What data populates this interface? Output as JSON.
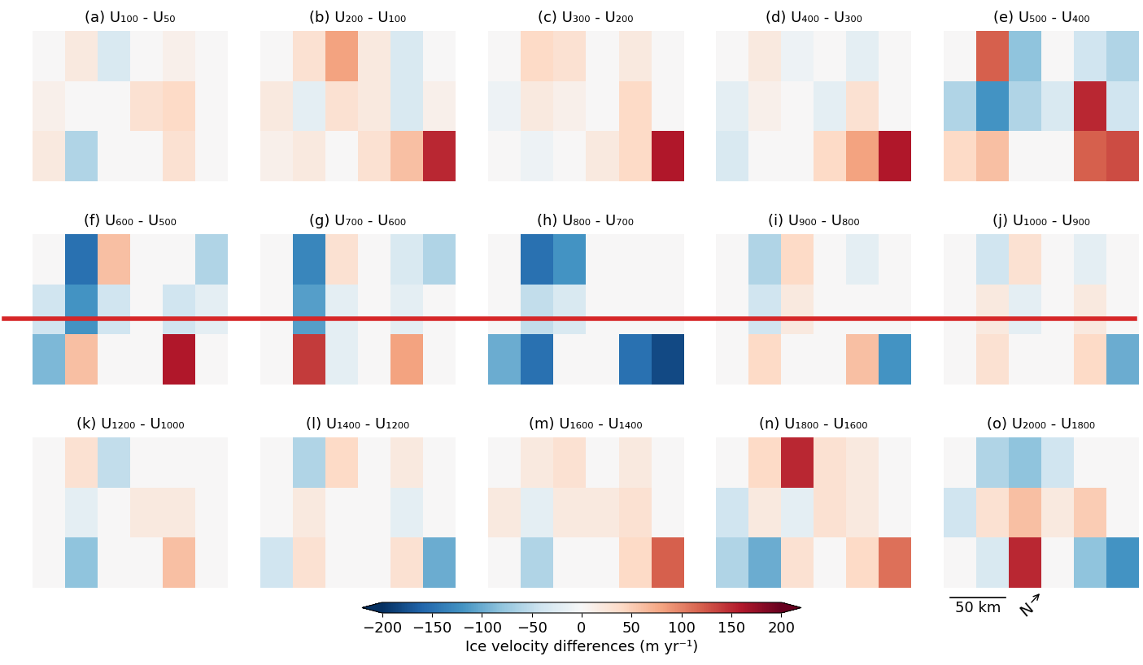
{
  "chart_data": {
    "type": "heatmap",
    "tick_labels": false,
    "panels": [
      {
        "title": "(a) U₁₀₀ - U₅₀",
        "cells": [
          [
            0,
            20,
            -30,
            0,
            10,
            0
          ],
          [
            10,
            0,
            0,
            30,
            40,
            0
          ],
          [
            20,
            -60,
            0,
            0,
            30,
            0
          ]
        ]
      },
      {
        "title": "(b) U₂₀₀ - U₁₀₀",
        "cells": [
          [
            0,
            30,
            80,
            20,
            -30,
            0
          ],
          [
            20,
            -20,
            30,
            20,
            -30,
            10
          ],
          [
            10,
            20,
            0,
            30,
            60,
            150
          ]
        ]
      },
      {
        "title": "(c) U₃₀₀ - U₂₀₀",
        "cells": [
          [
            0,
            40,
            30,
            0,
            20,
            0
          ],
          [
            -10,
            20,
            10,
            0,
            40,
            0
          ],
          [
            0,
            -10,
            0,
            20,
            40,
            160
          ]
        ]
      },
      {
        "title": "(d) U₄₀₀ - U₃₀₀",
        "cells": [
          [
            0,
            20,
            -10,
            0,
            -20,
            0
          ],
          [
            -20,
            10,
            0,
            -20,
            30,
            0
          ],
          [
            -30,
            0,
            0,
            40,
            80,
            160
          ]
        ]
      },
      {
        "title": "(e) U₅₀₀ - U₄₀₀",
        "cells": [
          [
            0,
            120,
            -80,
            0,
            -40,
            -60
          ],
          [
            -60,
            -120,
            -60,
            -30,
            150,
            -40
          ],
          [
            40,
            60,
            0,
            0,
            120,
            130
          ]
        ]
      },
      {
        "title": "(f) U₆₀₀ - U₅₀₀",
        "cells": [
          [
            0,
            -150,
            60,
            0,
            0,
            -60
          ],
          [
            -40,
            -120,
            -40,
            0,
            -40,
            -20
          ],
          [
            -90,
            60,
            0,
            0,
            160,
            0
          ]
        ]
      },
      {
        "title": "(g) U₇₀₀ - U₆₀₀",
        "cells": [
          [
            0,
            -130,
            30,
            0,
            -30,
            -60
          ],
          [
            0,
            -110,
            -20,
            0,
            -20,
            0
          ],
          [
            0,
            140,
            -20,
            0,
            80,
            0
          ]
        ]
      },
      {
        "title": "(h) U₈₀₀ - U₇₀₀",
        "cells": [
          [
            0,
            -150,
            -120,
            0,
            0,
            0
          ],
          [
            0,
            -50,
            -30,
            0,
            0,
            0
          ],
          [
            -100,
            -150,
            0,
            0,
            -150,
            -180
          ]
        ]
      },
      {
        "title": "(i) U₉₀₀ - U₈₀₀",
        "cells": [
          [
            0,
            -60,
            40,
            0,
            -20,
            0
          ],
          [
            0,
            -40,
            20,
            0,
            0,
            0
          ],
          [
            0,
            40,
            0,
            0,
            60,
            -120
          ]
        ]
      },
      {
        "title": "(j) U₁₀₀₀ - U₉₀₀",
        "cells": [
          [
            0,
            -40,
            30,
            0,
            -20,
            0
          ],
          [
            0,
            20,
            -20,
            0,
            20,
            0
          ],
          [
            0,
            30,
            0,
            0,
            40,
            -100
          ]
        ]
      },
      {
        "title": "(k) U₁₂₀₀ - U₁₀₀₀",
        "cells": [
          [
            0,
            30,
            -50,
            0,
            0,
            0
          ],
          [
            0,
            -20,
            0,
            20,
            20,
            0
          ],
          [
            0,
            -80,
            0,
            0,
            60,
            0
          ]
        ]
      },
      {
        "title": "(l) U₁₄₀₀ - U₁₂₀₀",
        "cells": [
          [
            0,
            -60,
            40,
            0,
            20,
            0
          ],
          [
            0,
            20,
            0,
            0,
            -20,
            0
          ],
          [
            -40,
            30,
            0,
            0,
            30,
            -100
          ]
        ]
      },
      {
        "title": "(m) U₁₆₀₀ - U₁₄₀₀",
        "cells": [
          [
            0,
            20,
            30,
            0,
            20,
            0
          ],
          [
            20,
            -20,
            20,
            20,
            30,
            0
          ],
          [
            0,
            -60,
            0,
            0,
            40,
            120
          ]
        ]
      },
      {
        "title": "(n) U₁₈₀₀ - U₁₆₀₀",
        "cells": [
          [
            0,
            40,
            150,
            30,
            20,
            0
          ],
          [
            -40,
            20,
            -20,
            30,
            20,
            0
          ],
          [
            -60,
            -100,
            30,
            0,
            40,
            110
          ]
        ]
      },
      {
        "title": "(o) U₂₀₀₀ - U₁₈₀₀",
        "cells": [
          [
            0,
            -60,
            -80,
            -40,
            0,
            0
          ],
          [
            -40,
            30,
            60,
            20,
            50,
            0
          ],
          [
            0,
            -30,
            150,
            0,
            -80,
            -120
          ]
        ]
      }
    ],
    "colorbar": {
      "label": "Ice velocity differences (m yr⁻¹)",
      "range": [
        -200,
        200
      ],
      "ticks": [
        {
          "value": -200,
          "label": "−200"
        },
        {
          "value": -150,
          "label": "−150"
        },
        {
          "value": -100,
          "label": "−100"
        },
        {
          "value": -50,
          "label": "−50"
        },
        0,
        50,
        100,
        150,
        200
      ]
    },
    "scale_bar": "50 km",
    "north_arrow": "N"
  }
}
